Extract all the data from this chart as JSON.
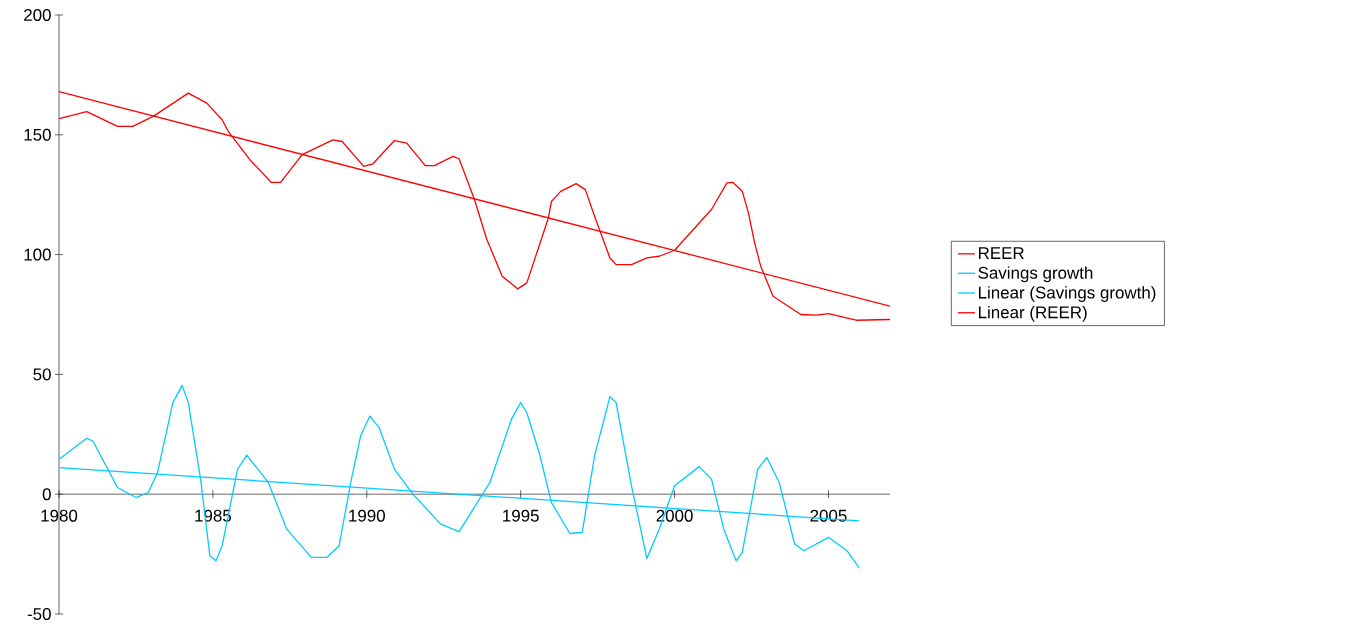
{
  "chart_data": {
    "type": "line",
    "xlim": [
      1980,
      2007
    ],
    "ylim": [
      -50,
      200
    ],
    "xticks": [
      1980,
      1985,
      1990,
      1995,
      2000,
      2005
    ],
    "yticks": [
      -50,
      0,
      50,
      100,
      150,
      200
    ],
    "legend": "right",
    "marker": "none",
    "line_style": "solid",
    "series": [
      {
        "name": "REER",
        "color": "#ff0000",
        "x": [
          1980,
          1980.9,
          1981.9,
          1982.4,
          1983.1,
          1984.2,
          1984.8,
          1985.3,
          1985.5,
          1986.2,
          1986.9,
          1987.2,
          1987.9,
          1988.9,
          1989.2,
          1989.9,
          1990.2,
          1990.9,
          1991.3,
          1991.9,
          1992.2,
          1992.8,
          1993.0,
          1993.5,
          1993.9,
          1994.4,
          1994.9,
          1995.2,
          1995.9,
          1996.0,
          1996.3,
          1996.8,
          1997.1,
          1997.4,
          1997.6,
          1997.9,
          1998.1,
          1998.6,
          1999.1,
          1999.5,
          2000.0,
          2000.8,
          2001.2,
          2001.7,
          2001.9,
          2002.2,
          2002.4,
          2002.6,
          2002.8,
          2003.2,
          2004.1,
          2004.6,
          2005.0,
          2005.9,
          2007.0
        ],
        "values": [
          156.7,
          159.7,
          153.5,
          153.5,
          158,
          167.4,
          163.2,
          156.3,
          151.4,
          139.6,
          130.1,
          130.1,
          141.7,
          147.9,
          147.2,
          136.8,
          137.9,
          147.6,
          146.5,
          137.1,
          137.1,
          141,
          140,
          122.9,
          106.3,
          91,
          85.7,
          88.2,
          115.3,
          122.2,
          126.4,
          129.6,
          127.1,
          116,
          109,
          98.6,
          95.8,
          95.8,
          98.6,
          99.3,
          101.8,
          113.2,
          118.8,
          129.9,
          130.1,
          126.4,
          117.4,
          104.9,
          95.1,
          82.6,
          75,
          74.7,
          75.4,
          72.6,
          72.9
        ]
      },
      {
        "name": "Savings growth",
        "color": "#00ccff",
        "x": [
          1980,
          1980.9,
          1981.1,
          1981.9,
          1982.5,
          1982.9,
          1983.2,
          1983.7,
          1984.0,
          1984.2,
          1984.6,
          1984.9,
          1985.1,
          1985.3,
          1985.8,
          1986.1,
          1986.8,
          1987.4,
          1988.2,
          1988.7,
          1989.1,
          1989.5,
          1989.8,
          1990.1,
          1990.4,
          1990.9,
          1991.5,
          1992.4,
          1993.0,
          1994.0,
          1994.7,
          1995.0,
          1995.2,
          1995.6,
          1996.0,
          1996.6,
          1997.0,
          1997.4,
          1997.9,
          1998.1,
          1998.6,
          1999.1,
          1999.5,
          2000.0,
          2000.8,
          2001.2,
          2001.6,
          2002.0,
          2002.2,
          2002.7,
          2003.0,
          2003.4,
          2003.9,
          2004.2,
          2005.0,
          2005.6,
          2006.0
        ],
        "values": [
          14.6,
          23.3,
          22.2,
          2.8,
          -1.4,
          0.7,
          9,
          38.2,
          45.4,
          38.2,
          6.3,
          -25.7,
          -27.8,
          -21.5,
          10.4,
          16.3,
          4.9,
          -14.6,
          -26.4,
          -26.4,
          -21.5,
          6.3,
          24.3,
          32.6,
          27.8,
          10.4,
          0,
          -12.5,
          -15.6,
          4.9,
          31.3,
          38.2,
          34,
          17.4,
          -3.5,
          -16.4,
          -16,
          16,
          40.7,
          38.2,
          3.5,
          -26.8,
          -14.6,
          3.5,
          11.5,
          6.3,
          -14.6,
          -27.8,
          -24.3,
          10.4,
          15.3,
          4.9,
          -20.8,
          -23.6,
          -18,
          -23.6,
          -30.8
        ]
      },
      {
        "name": "Linear (Savings growth)",
        "color": "#00ccff",
        "x": [
          1980,
          2006.0
        ],
        "values": [
          11.1,
          -11.1
        ]
      },
      {
        "name": "Linear (REER)",
        "color": "#ff0000",
        "x": [
          1980,
          2007
        ],
        "values": [
          168,
          78.5
        ]
      }
    ]
  }
}
